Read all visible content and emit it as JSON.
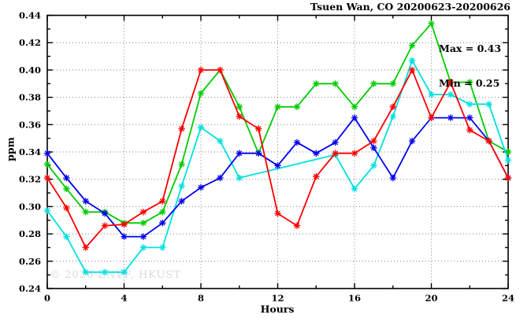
{
  "chart": {
    "title": "Tsuen Wan, CO 20200623-20200626",
    "ylabel": "ppm",
    "xlabel": "Hours",
    "annotation": {
      "max": "Max = 0.43",
      "min": "Min = 0.25"
    },
    "watermark": "© 2026 ENVF, HKUST"
  },
  "chart_data": {
    "type": "line",
    "title": "Tsuen Wan, CO 20200623-20200626",
    "xlabel": "Hours",
    "ylabel": "ppm",
    "xlim": [
      0,
      24
    ],
    "ylim": [
      0.24,
      0.44
    ],
    "grid": true,
    "legend_position": "none",
    "annotations": [
      "Max = 0.43",
      "Min = 0.25"
    ],
    "xticks": {
      "values": [
        0,
        4,
        8,
        12,
        16,
        20,
        24
      ],
      "labels": [
        "0",
        "4",
        "8",
        "12",
        "16",
        "20",
        "24"
      ],
      "minor_step": 2
    },
    "yticks": {
      "values": [
        0.24,
        0.26,
        0.28,
        0.3,
        0.32,
        0.34,
        0.36,
        0.38,
        0.4,
        0.42,
        0.44
      ],
      "labels": [
        "0.24",
        "0.26",
        "0.28",
        "0.30",
        "0.32",
        "0.34",
        "0.36",
        "0.38",
        "0.40",
        "0.42",
        "0.44"
      ],
      "minor_step": 0.01
    },
    "x": [
      0,
      1,
      2,
      3,
      4,
      5,
      6,
      7,
      8,
      9,
      10,
      11,
      12,
      13,
      14,
      15,
      16,
      17,
      18,
      19,
      20,
      21,
      22,
      23,
      24
    ],
    "series": [
      {
        "name": "green",
        "color": "#00cc00",
        "values": [
          0.331,
          0.313,
          0.296,
          0.296,
          0.288,
          0.288,
          0.296,
          0.331,
          0.383,
          0.4,
          0.373,
          0.339,
          0.373,
          0.373,
          0.39,
          0.39,
          0.373,
          0.39,
          0.39,
          0.418,
          0.434,
          0.391,
          0.391,
          0.348,
          0.34
        ]
      },
      {
        "name": "cyan",
        "color": "#00e0e0",
        "values": [
          0.297,
          0.278,
          0.252,
          0.252,
          0.252,
          0.27,
          0.27,
          0.315,
          0.358,
          0.348,
          0.321,
          null,
          null,
          null,
          null,
          0.338,
          0.313,
          0.33,
          0.366,
          0.407,
          0.382,
          0.382,
          0.375,
          0.375,
          0.334
        ]
      },
      {
        "name": "blue",
        "color": "#0000ee",
        "values": [
          0.339,
          0.321,
          0.304,
          0.295,
          0.278,
          0.278,
          0.288,
          0.304,
          0.314,
          0.321,
          0.339,
          0.339,
          0.33,
          0.347,
          0.339,
          0.347,
          0.365,
          0.343,
          0.321,
          0.348,
          0.365,
          0.365,
          0.365,
          0.348,
          0.321
        ]
      },
      {
        "name": "red",
        "color": "#ff0000",
        "values": [
          0.321,
          0.299,
          0.27,
          0.286,
          0.287,
          0.296,
          0.304,
          0.357,
          0.4,
          0.4,
          0.366,
          0.357,
          0.295,
          0.286,
          0.322,
          0.339,
          0.339,
          0.348,
          0.373,
          0.4,
          0.365,
          0.391,
          0.356,
          0.348,
          0.321
        ]
      }
    ]
  }
}
